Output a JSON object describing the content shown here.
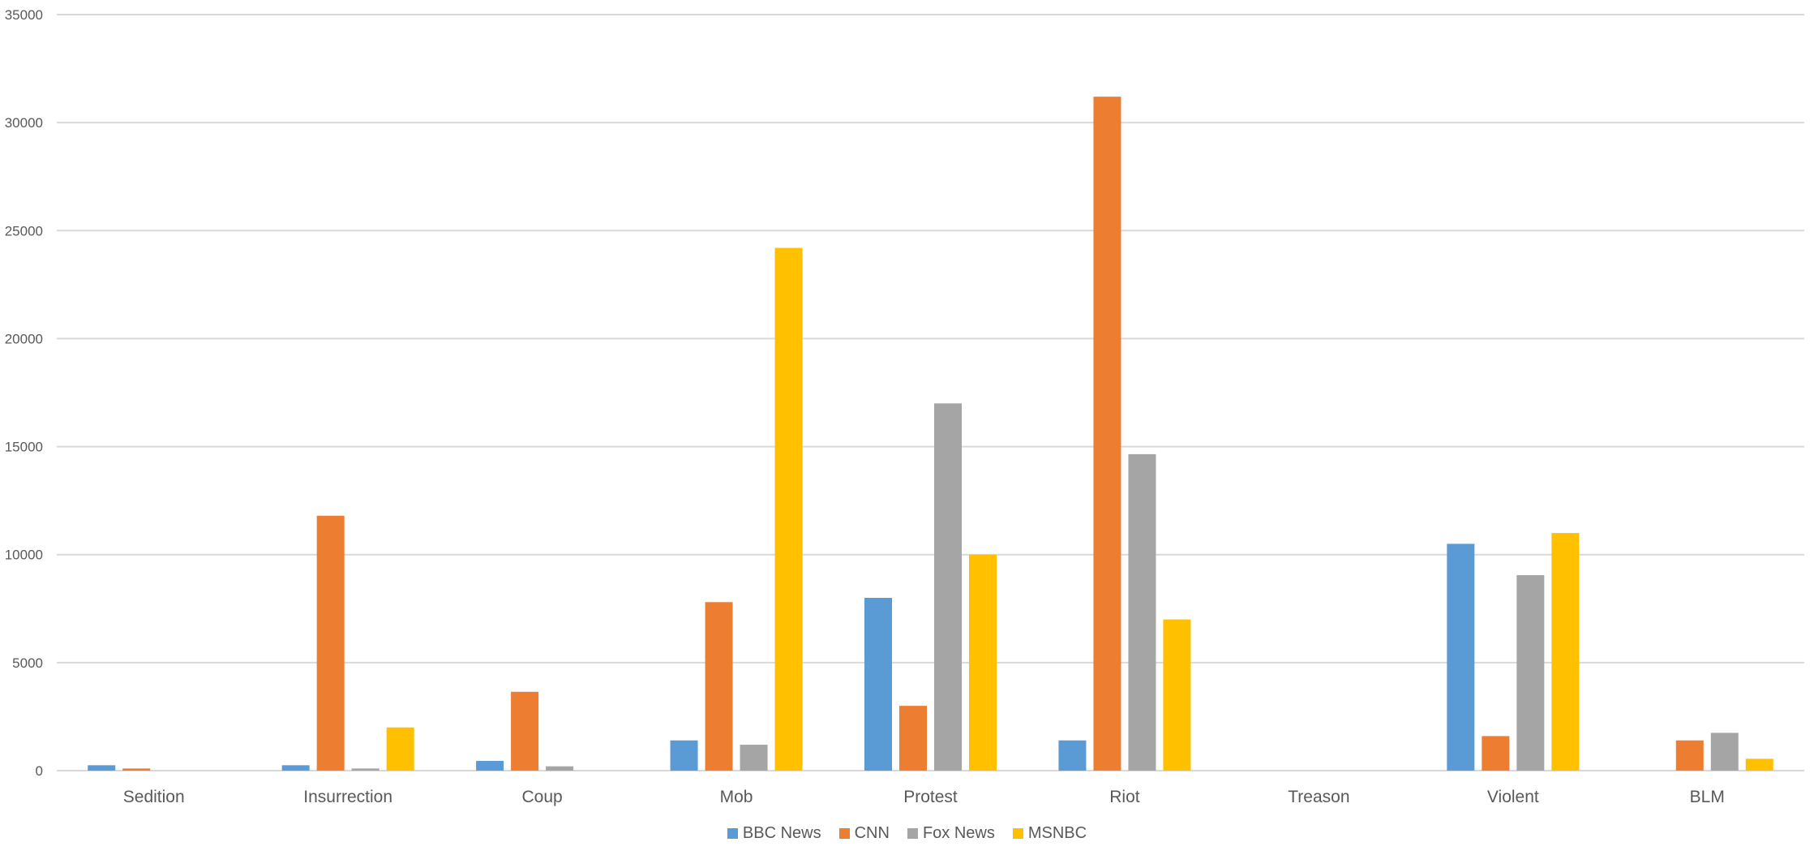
{
  "chart_data": {
    "type": "bar",
    "title": "",
    "xlabel": "",
    "ylabel": "",
    "categories": [
      "Sedition",
      "Insurrection",
      "Coup",
      "Mob",
      "Protest",
      "Riot",
      "Treason",
      "Violent",
      "BLM"
    ],
    "series": [
      {
        "name": "BBC News",
        "color": "#5b9bd5",
        "values": [
          250,
          250,
          450,
          1400,
          8000,
          1400,
          0,
          10500,
          0
        ]
      },
      {
        "name": "CNN",
        "color": "#ed7d31",
        "values": [
          100,
          11800,
          3650,
          7800,
          3000,
          31200,
          0,
          1600,
          1400
        ]
      },
      {
        "name": "Fox News",
        "color": "#a5a5a5",
        "values": [
          0,
          100,
          200,
          1200,
          17000,
          14650,
          0,
          9050,
          1750
        ]
      },
      {
        "name": "MSNBC",
        "color": "#ffc000",
        "values": [
          0,
          2000,
          0,
          24200,
          10000,
          7000,
          0,
          11000,
          550
        ]
      }
    ],
    "ylim": [
      0,
      35000
    ],
    "yticks": [
      0,
      5000,
      10000,
      15000,
      20000,
      25000,
      30000,
      35000
    ],
    "grid": true,
    "legend_position": "bottom"
  }
}
